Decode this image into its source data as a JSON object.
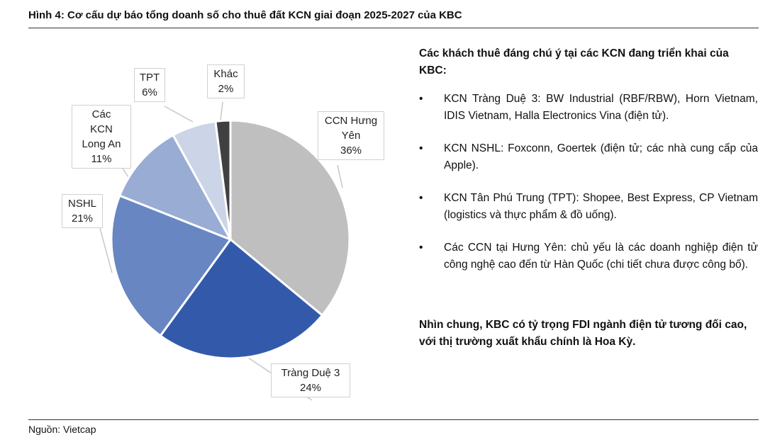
{
  "figure_title": "Hình 4: Cơ cấu dự báo tổng doanh số cho thuê đất KCN giai đoạn 2025-2027 của KBC",
  "source": "Nguồn: Vietcap",
  "chart_data": {
    "type": "pie",
    "title": "Cơ cấu dự báo tổng doanh số cho thuê đất KCN giai đoạn 2025-2027 của KBC",
    "start": "12 o'clock, clockwise",
    "slices": [
      {
        "label": "CCN Hưng Yên",
        "value": 36,
        "value_label": "36%",
        "color": "#bfbfbf"
      },
      {
        "label": "Tràng Duệ 3",
        "value": 24,
        "value_label": "24%",
        "color": "#335aaa"
      },
      {
        "label": "NSHL",
        "value": 21,
        "value_label": "21%",
        "color": "#6886c2"
      },
      {
        "label": "Các KCN Long An",
        "value": 11,
        "value_label": "11%",
        "color": "#98acd4"
      },
      {
        "label": "TPT",
        "value": 6,
        "value_label": "6%",
        "color": "#ccd4e7"
      },
      {
        "label": "Khác",
        "value": 2,
        "value_label": "2%",
        "color": "#404040"
      }
    ]
  },
  "right_panel": {
    "heading": "Các khách thuê đáng chú ý tại các KCN đang triển khai của KBC:",
    "bullets": [
      "KCN Tràng Duệ 3: BW Industrial (RBF/RBW), Horn Vietnam, IDIS Vietnam, Halla Electronics Vina (điện tử).",
      "KCN NSHL: Foxconn, Goertek (điện tử; các nhà cung cấp của Apple).",
      "KCN Tân Phú Trung (TPT): Shopee, Best Express, CP Vietnam (logistics và thực phẩm & đồ uống).",
      "Các CCN tại Hưng Yên: chủ yếu là các doanh nghiệp điện tử công nghệ cao đến từ Hàn Quốc (chi tiết chưa được công bố)."
    ],
    "conclusion": "Nhìn chung, KBC có tỷ trọng FDI ngành điện tử tương đối cao, với thị trường xuất khẩu chính là Hoa Kỳ."
  }
}
